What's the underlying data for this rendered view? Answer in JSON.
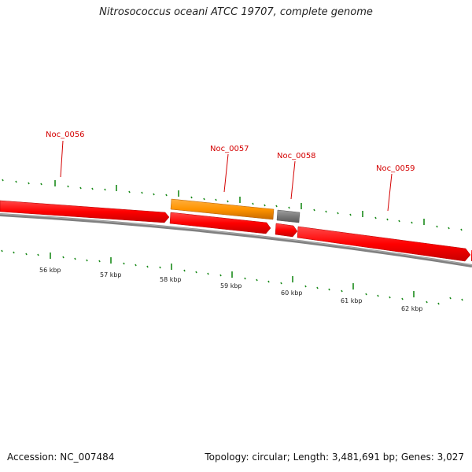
{
  "title": "Nitrosococcus oceani ATCC 19707, complete genome",
  "footer": {
    "accession": "Accession: NC_007484",
    "summary": "Topology: circular; Length: 3,481,691 bp; Genes: 3,027"
  },
  "colors": {
    "gene_forward": "#ff0000",
    "gene_highlight": "#ff8c00",
    "gene_other": "#777777",
    "backbone": "#808080",
    "tick": "#1a8a1a",
    "label": "#d40000"
  },
  "genes": [
    {
      "name": "Noc_0056",
      "label": "Noc_0056"
    },
    {
      "name": "Noc_0057",
      "label": "Noc_0057"
    },
    {
      "name": "Noc_0058",
      "label": "Noc_0058"
    },
    {
      "name": "Noc_0059",
      "label": "Noc_0059"
    }
  ],
  "scale": {
    "ticks": [
      {
        "value": 56,
        "label": "56 kbp"
      },
      {
        "value": 57,
        "label": "57 kbp"
      },
      {
        "value": 58,
        "label": "58 kbp"
      },
      {
        "value": 59,
        "label": "59 kbp"
      },
      {
        "value": 60,
        "label": "60 kbp"
      },
      {
        "value": 61,
        "label": "61 kbp"
      },
      {
        "value": 62,
        "label": "62 kbp"
      }
    ]
  }
}
